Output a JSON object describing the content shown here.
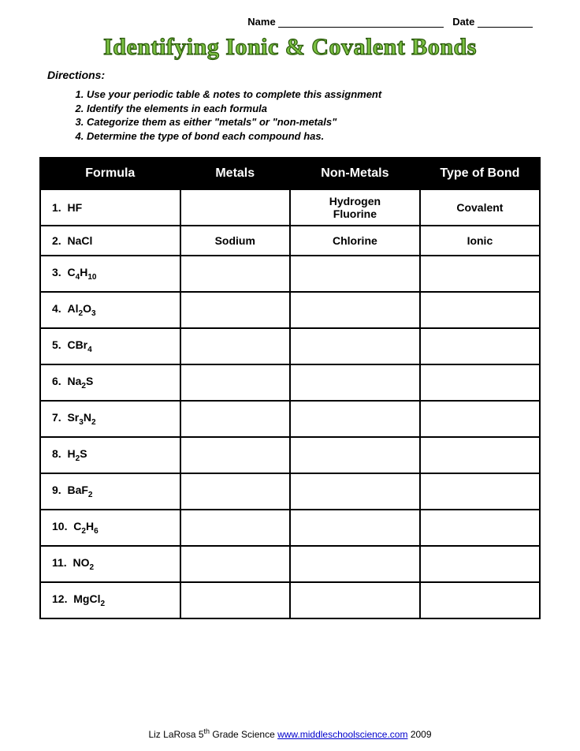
{
  "header": {
    "name_label": "Name",
    "date_label": "Date"
  },
  "title": "Identifying Ionic & Covalent Bonds",
  "directions_label": "Directions:",
  "directions": [
    "Use your periodic table & notes to complete this assignment",
    "Identify the elements in each formula",
    "Categorize them as either \"metals\" or \"non-metals\"",
    "Determine the type of bond each compound has."
  ],
  "table": {
    "columns": [
      "Formula",
      "Metals",
      "Non-Metals",
      "Type of Bond"
    ],
    "col_widths": [
      "28%",
      "22%",
      "26%",
      "24%"
    ],
    "header_bg": "#000000",
    "header_fg": "#ffffff",
    "border_color": "#000000",
    "rows": [
      {
        "num": "1.",
        "formula_html": "HF",
        "metals": "",
        "nonmetals": "Hydrogen Fluorine",
        "bond": "Covalent",
        "tight": false
      },
      {
        "num": "2.",
        "formula_html": "NaCl",
        "metals": "Sodium",
        "nonmetals": "Chlorine",
        "bond": "Ionic",
        "tight": true
      },
      {
        "num": "3.",
        "formula_html": "C<sub>4</sub>H<sub>10</sub>",
        "metals": "",
        "nonmetals": "",
        "bond": "",
        "tight": false
      },
      {
        "num": "4.",
        "formula_html": "Al<sub>2</sub>O<sub>3</sub>",
        "metals": "",
        "nonmetals": "",
        "bond": "",
        "tight": false
      },
      {
        "num": "5.",
        "formula_html": "CBr<sub>4</sub>",
        "metals": "",
        "nonmetals": "",
        "bond": "",
        "tight": false
      },
      {
        "num": "6.",
        "formula_html": "Na<sub>2</sub>S",
        "metals": "",
        "nonmetals": "",
        "bond": "",
        "tight": false
      },
      {
        "num": "7.",
        "formula_html": "Sr<sub>3</sub>N<sub>2</sub>",
        "metals": "",
        "nonmetals": "",
        "bond": "",
        "tight": false
      },
      {
        "num": "8.",
        "formula_html": "H<sub>2</sub>S",
        "metals": "",
        "nonmetals": "",
        "bond": "",
        "tight": false
      },
      {
        "num": "9.",
        "formula_html": "BaF<sub>2</sub>",
        "metals": "",
        "nonmetals": "",
        "bond": "",
        "tight": false
      },
      {
        "num": "10.",
        "formula_html": "C<sub>2</sub>H<sub>6</sub>",
        "metals": "",
        "nonmetals": "",
        "bond": "",
        "tight": false
      },
      {
        "num": "11.",
        "formula_html": "NO<sub>2</sub>",
        "metals": "",
        "nonmetals": "",
        "bond": "",
        "tight": false
      },
      {
        "num": "12.",
        "formula_html": "MgCl<sub>2</sub>",
        "metals": "",
        "nonmetals": "",
        "bond": "",
        "tight": false
      }
    ]
  },
  "footer": {
    "author": "Liz LaRosa 5",
    "grade_suffix": "th",
    "subject": " Grade Science ",
    "link_text": "www.middleschoolscience.com",
    "year": " 2009"
  }
}
